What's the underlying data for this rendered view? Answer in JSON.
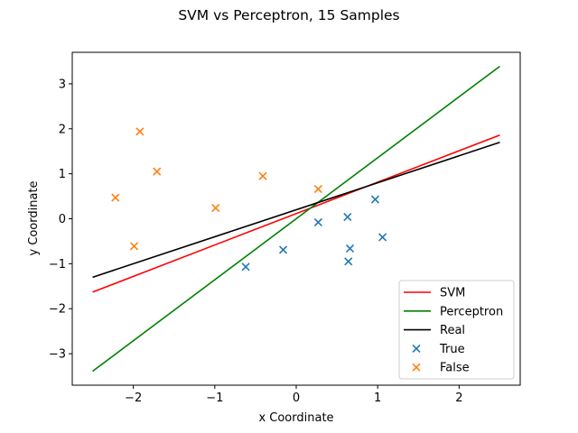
{
  "chart_data": {
    "type": "line+scatter",
    "title": "SVM vs Perceptron, 15 Samples",
    "xlabel": "x Coordinate",
    "ylabel": "y Coordinate",
    "xlim": [
      -2.75,
      2.75
    ],
    "ylim": [
      -3.7,
      3.7
    ],
    "xticks": [
      -2,
      -1,
      0,
      1,
      2
    ],
    "yticks": [
      -3,
      -2,
      -1,
      0,
      1,
      2,
      3
    ],
    "legend_position": "lower-right",
    "grid": false,
    "lines": [
      {
        "name": "SVM",
        "color": "#ff0000",
        "x": [
          -2.5,
          2.5
        ],
        "y": [
          -1.63,
          1.86
        ]
      },
      {
        "name": "Perceptron",
        "color": "#008000",
        "x": [
          -2.5,
          2.5
        ],
        "y": [
          -3.39,
          3.39
        ]
      },
      {
        "name": "Real",
        "color": "#000000",
        "x": [
          -2.5,
          2.5
        ],
        "y": [
          -1.3,
          1.7
        ]
      }
    ],
    "scatter": [
      {
        "name": "True",
        "color": "#1f77b4",
        "marker": "x",
        "points": [
          [
            -0.62,
            -1.07
          ],
          [
            -0.16,
            -0.69
          ],
          [
            0.27,
            -0.08
          ],
          [
            0.63,
            0.04
          ],
          [
            0.97,
            0.43
          ],
          [
            0.64,
            -0.95
          ],
          [
            0.66,
            -0.66
          ],
          [
            1.06,
            -0.41
          ]
        ]
      },
      {
        "name": "False",
        "color": "#ff7f0e",
        "marker": "x",
        "points": [
          [
            -2.22,
            0.47
          ],
          [
            -1.99,
            -0.61
          ],
          [
            -1.92,
            1.94
          ],
          [
            -1.71,
            1.05
          ],
          [
            -0.99,
            0.24
          ],
          [
            -0.41,
            0.95
          ],
          [
            0.27,
            0.66
          ]
        ]
      }
    ]
  }
}
